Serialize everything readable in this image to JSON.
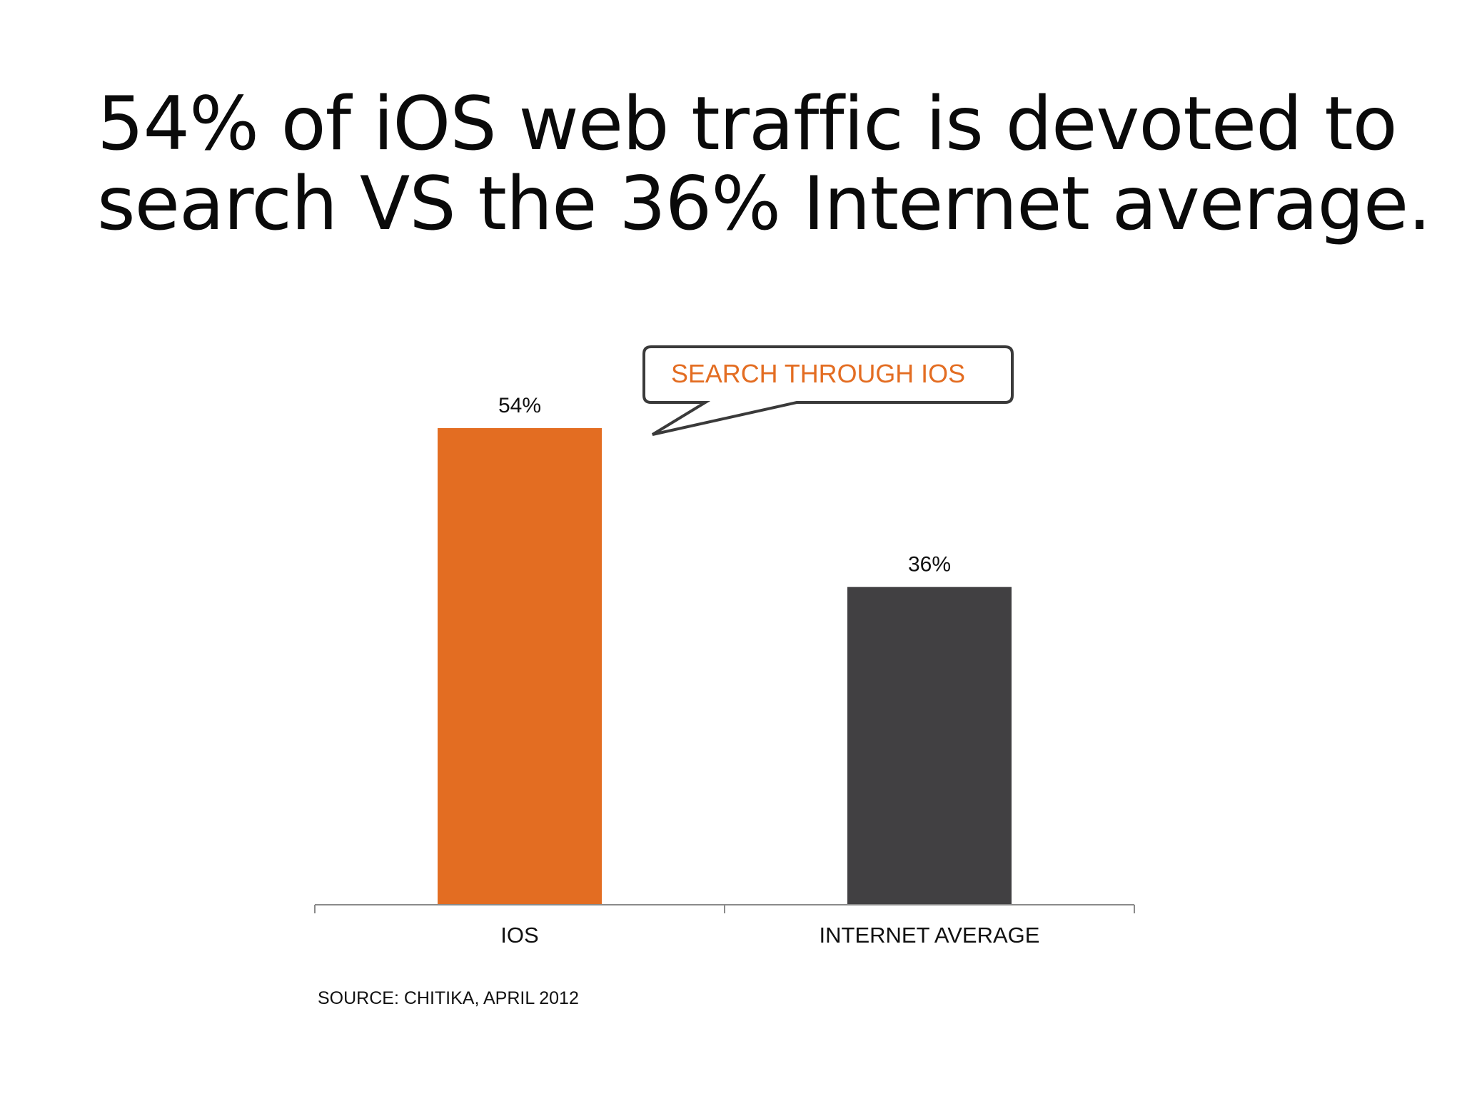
{
  "title": {
    "line1": "54% of iOS web traffic is devoted to",
    "line2": "search VS the 36% Internet average."
  },
  "callout": {
    "text": "SEARCH THROUGH IOS",
    "color": "#e36d22",
    "points_to": "IOS"
  },
  "source": "SOURCE: CHITIKA, APRIL 2012",
  "chart_data": {
    "type": "bar",
    "categories": [
      "IOS",
      "INTERNET AVERAGE"
    ],
    "values": [
      54,
      36
    ],
    "data_labels": [
      "54%",
      "36%"
    ],
    "colors": [
      "#e36d22",
      "#414042"
    ],
    "ylim": [
      0,
      60
    ],
    "grid": false,
    "legend": "none",
    "xlabel": "",
    "ylabel": ""
  }
}
